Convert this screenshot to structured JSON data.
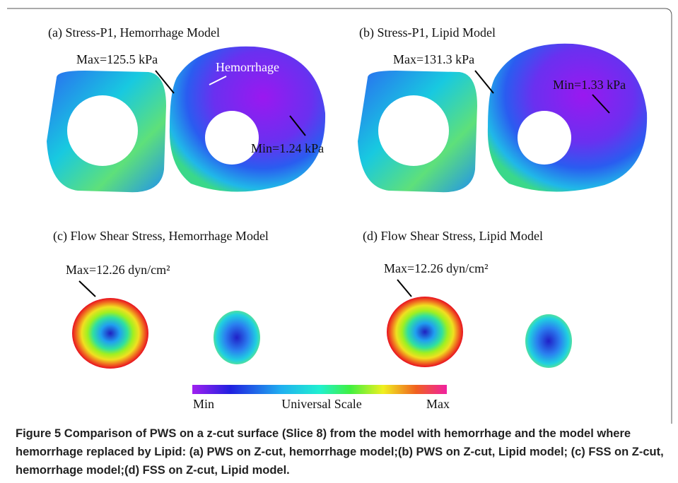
{
  "figure": {
    "panels": [
      {
        "title": "(a) Stress-P1, Hemorrhage Model",
        "max_label": "Max=125.5 kPa",
        "min_label": "Min=1.24 kPa",
        "region_label": "Hemorrhage"
      },
      {
        "title": "(b) Stress-P1, Lipid Model",
        "max_label": "Max=131.3 kPa",
        "min_label": "Min=1.33 kPa"
      },
      {
        "title": "(c) Flow Shear Stress, Hemorrhage Model",
        "max_label": "Max=12.26 dyn/cm²"
      },
      {
        "title": "(d) Flow Shear Stress, Lipid Model",
        "max_label": "Max=12.26 dyn/cm²"
      }
    ],
    "scale": {
      "min": "Min",
      "title": "Universal Scale",
      "max": "Max"
    },
    "caption": {
      "label": "Figure 5",
      "text": "Comparison of PWS on a z-cut surface (Slice 8) from the model with hemorrhage and the model where hemorrhage replaced by Lipid: (a) PWS on Z-cut, hemorrhage model;(b) PWS on Z-cut, Lipid model; (c) FSS on Z-cut, hemorrhage model;(d) FSS on Z-cut, Lipid model."
    }
  }
}
